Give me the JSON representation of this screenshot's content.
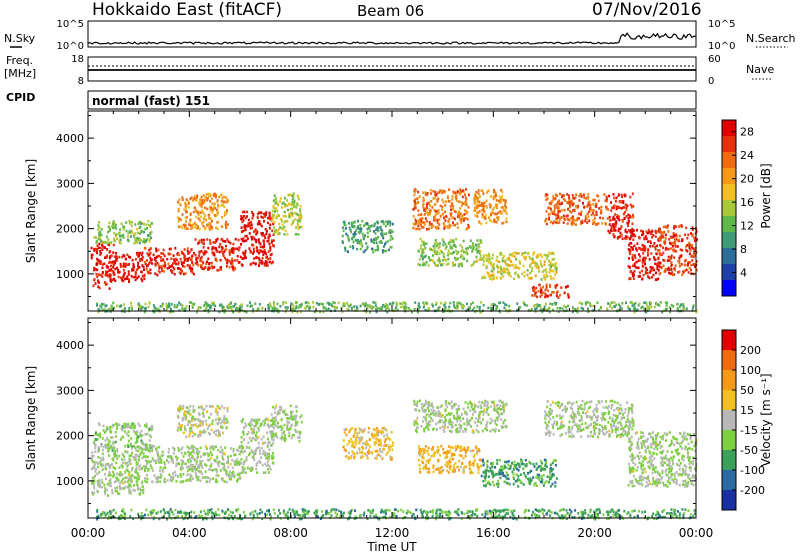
{
  "header": {
    "station": "Hokkaido East (fitACF)",
    "beam": "Beam 06",
    "date": "07/Nov/2016"
  },
  "top_panels": {
    "nsky_label": "N.Sky",
    "nsky_ticks": [
      "10^5",
      "10^0"
    ],
    "nsearch_label": "N.Search",
    "freq_label_1": "Freq.",
    "freq_label_2": "[MHz]",
    "freq_ticks": [
      "18",
      "8"
    ],
    "nave_label": "Nave",
    "nave_ticks": [
      "60",
      "0"
    ],
    "cpid_label": "CPID",
    "cpid_value": "normal (fast) 151"
  },
  "chart_data": [
    {
      "type": "heatmap",
      "panel": "power",
      "ylabel": "Slant Range [km]",
      "xlabel": "Time UT",
      "x_ticks": [
        "00:00",
        "04:00",
        "08:00",
        "12:00",
        "16:00",
        "20:00",
        "00:00"
      ],
      "xlim_hours": [
        0,
        24
      ],
      "y_ticks": [
        1000,
        2000,
        3000,
        4000
      ],
      "ylim": [
        180,
        4600
      ],
      "colorbar": {
        "label": "Power [dB]",
        "ticks": [
          "4",
          "8",
          "12",
          "16",
          "20",
          "24",
          "28"
        ],
        "range": [
          0,
          30
        ],
        "colors": [
          "#0000ff",
          "#1e3fa8",
          "#2d6e9a",
          "#3f9a78",
          "#60b84a",
          "#a8c83a",
          "#f0c020",
          "#f59a18",
          "#f06a10",
          "#e83010",
          "#e00000"
        ]
      },
      "regions": [
        {
          "t0": 0.1,
          "t1": 1.0,
          "r0": 700,
          "r1": 1700,
          "level": 0.92
        },
        {
          "t0": 1.0,
          "t1": 2.2,
          "r0": 850,
          "r1": 1500,
          "level": 0.95
        },
        {
          "t0": 2.2,
          "t1": 4.2,
          "r0": 1000,
          "r1": 1600,
          "level": 0.9
        },
        {
          "t0": 4.2,
          "t1": 6.0,
          "r0": 1100,
          "r1": 1800,
          "level": 0.9
        },
        {
          "t0": 6.0,
          "t1": 7.3,
          "r0": 1200,
          "r1": 2400,
          "level": 0.95
        },
        {
          "t0": 0.2,
          "t1": 2.5,
          "r0": 1700,
          "r1": 2200,
          "level": 0.45
        },
        {
          "t0": 3.5,
          "t1": 5.5,
          "r0": 2000,
          "r1": 2800,
          "level": 0.7
        },
        {
          "t0": 7.2,
          "t1": 8.4,
          "r0": 1900,
          "r1": 2800,
          "level": 0.5
        },
        {
          "t0": 10.0,
          "t1": 12.0,
          "r0": 1500,
          "r1": 2200,
          "level": 0.35
        },
        {
          "t0": 12.8,
          "t1": 15.0,
          "r0": 2000,
          "r1": 2900,
          "level": 0.75
        },
        {
          "t0": 15.2,
          "t1": 16.5,
          "r0": 2100,
          "r1": 2900,
          "level": 0.7
        },
        {
          "t0": 13.0,
          "t1": 15.5,
          "r0": 1200,
          "r1": 1800,
          "level": 0.45
        },
        {
          "t0": 15.5,
          "t1": 18.5,
          "r0": 900,
          "r1": 1500,
          "level": 0.55
        },
        {
          "t0": 17.5,
          "t1": 19.0,
          "r0": 500,
          "r1": 800,
          "level": 0.85
        },
        {
          "t0": 18.0,
          "t1": 20.5,
          "r0": 2100,
          "r1": 2800,
          "level": 0.8
        },
        {
          "t0": 20.5,
          "t1": 21.5,
          "r0": 1800,
          "r1": 2800,
          "level": 0.9
        },
        {
          "t0": 21.3,
          "t1": 22.5,
          "r0": 900,
          "r1": 2000,
          "level": 0.92
        },
        {
          "t0": 22.5,
          "t1": 24.0,
          "r0": 1000,
          "r1": 2100,
          "level": 0.85
        },
        {
          "t0": 0.3,
          "t1": 24.0,
          "r0": 180,
          "r1": 400,
          "level": 0.4
        }
      ]
    },
    {
      "type": "heatmap",
      "panel": "velocity",
      "ylabel": "Slant Range [km]",
      "xlabel": "Time UT",
      "x_ticks": [
        "00:00",
        "04:00",
        "08:00",
        "12:00",
        "16:00",
        "20:00",
        "00:00"
      ],
      "xlim_hours": [
        0,
        24
      ],
      "y_ticks": [
        1000,
        2000,
        3000,
        4000
      ],
      "ylim": [
        180,
        4600
      ],
      "colorbar": {
        "label": "Velocity [m s⁻¹]",
        "ticks": [
          "200",
          "100",
          "50",
          "15",
          "-15",
          "-50",
          "-100",
          "-200"
        ],
        "range": [
          -250,
          250
        ],
        "colors": [
          "#1a2fa0",
          "#2a6aa0",
          "#3aa05a",
          "#7ed040",
          "#b8b8b8",
          "#f0c020",
          "#f59a18",
          "#f06a10",
          "#e00000"
        ]
      },
      "regions": [
        {
          "t0": 0.1,
          "t1": 2.2,
          "r0": 700,
          "r1": 1700,
          "level": 0.45
        },
        {
          "t0": 2.2,
          "t1": 6.0,
          "r0": 1000,
          "r1": 1800,
          "level": 0.45
        },
        {
          "t0": 6.0,
          "t1": 7.3,
          "r0": 1200,
          "r1": 2400,
          "level": 0.45
        },
        {
          "t0": 0.2,
          "t1": 2.5,
          "r0": 1700,
          "r1": 2300,
          "level": 0.42
        },
        {
          "t0": 3.5,
          "t1": 5.5,
          "r0": 2000,
          "r1": 2700,
          "level": 0.5
        },
        {
          "t0": 7.2,
          "t1": 8.4,
          "r0": 1900,
          "r1": 2700,
          "level": 0.45
        },
        {
          "t0": 10.0,
          "t1": 12.0,
          "r0": 1500,
          "r1": 2200,
          "level": 0.62
        },
        {
          "t0": 12.8,
          "t1": 16.5,
          "r0": 2100,
          "r1": 2800,
          "level": 0.45
        },
        {
          "t0": 13.0,
          "t1": 15.5,
          "r0": 1200,
          "r1": 1800,
          "level": 0.65
        },
        {
          "t0": 15.5,
          "t1": 18.5,
          "r0": 900,
          "r1": 1500,
          "level": 0.3
        },
        {
          "t0": 18.0,
          "t1": 21.5,
          "r0": 2000,
          "r1": 2800,
          "level": 0.45
        },
        {
          "t0": 21.3,
          "t1": 24.0,
          "r0": 900,
          "r1": 2100,
          "level": 0.45
        },
        {
          "t0": 0.3,
          "t1": 24.0,
          "r0": 180,
          "r1": 400,
          "level": 0.3
        }
      ]
    }
  ]
}
